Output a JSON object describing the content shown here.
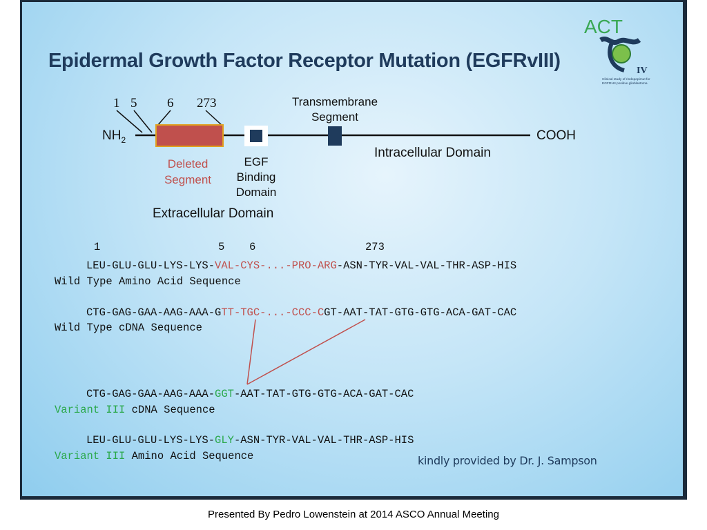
{
  "title": "Epidermal Growth Factor Receptor Mutation (EGFRvIII)",
  "logo": {
    "name": "ACT",
    "roman": "IV",
    "caption_line1": "Clinical study of rindopepimut for",
    "caption_line2": "EGFRvIII positive glioblastoma"
  },
  "diagram": {
    "nh2": "NH",
    "nh2_sub": "2",
    "cooh": "COOH",
    "pos_1": "1",
    "pos_5": "5",
    "pos_6": "6",
    "pos_273": "273",
    "deleted_segment_line1": "Deleted",
    "deleted_segment_line2": "Segment",
    "egf_line1": "EGF",
    "egf_line2": "Binding",
    "egf_line3": "Domain",
    "transmembrane_line1": "Transmembrane",
    "transmembrane_line2": "Segment",
    "intracellular": "Intracellular Domain",
    "extracellular": "Extracellular Domain",
    "colors": {
      "deleted": "#c0504d",
      "domain": "#1f3b5c",
      "line": "#111111",
      "highlight": "#c0504d",
      "variant": "#2aa84a"
    }
  },
  "sequences": {
    "positions": {
      "p1": "1",
      "p5": "5",
      "p6": "6",
      "p273": "273"
    },
    "wt_aa": {
      "a": "LEU-GLU-GLU-LYS-LYS-",
      "b": "VAL-CYS-...-PRO-ARG",
      "c": "-ASN-TYR-VAL-VAL-THR-ASP-HIS"
    },
    "wt_aa_label": "Wild Type Amino Acid Sequence",
    "wt_cdna": {
      "a": "CTG-GAG-GAA-AAG-AAA-G",
      "b": "TT-TGC-...-CCC-C",
      "c": "GT-AAT-TAT-GTG-GTG-ACA-GAT-CAC"
    },
    "wt_cdna_label": "Wild Type cDNA Sequence",
    "var_cdna": {
      "a": "CTG-GAG-GAA-AAG-AAA-",
      "b": "GGT",
      "c": "-AAT-TAT-GTG-GTG-ACA-GAT-CAC"
    },
    "var_cdna_label_a": "Variant III",
    "var_cdna_label_b": " cDNA Sequence",
    "var_aa": {
      "a": "LEU-GLU-GLU-LYS-LYS-",
      "b": "GLY",
      "c": "-ASN-TYR-VAL-VAL-THR-ASP-HIS"
    },
    "var_aa_label_a": "Variant III",
    "var_aa_label_b": " Amino Acid Sequence"
  },
  "credit": "kindly provided by Dr. J. Sampson",
  "footer": "Presented By Pedro Lowenstein at 2014 ASCO Annual Meeting"
}
